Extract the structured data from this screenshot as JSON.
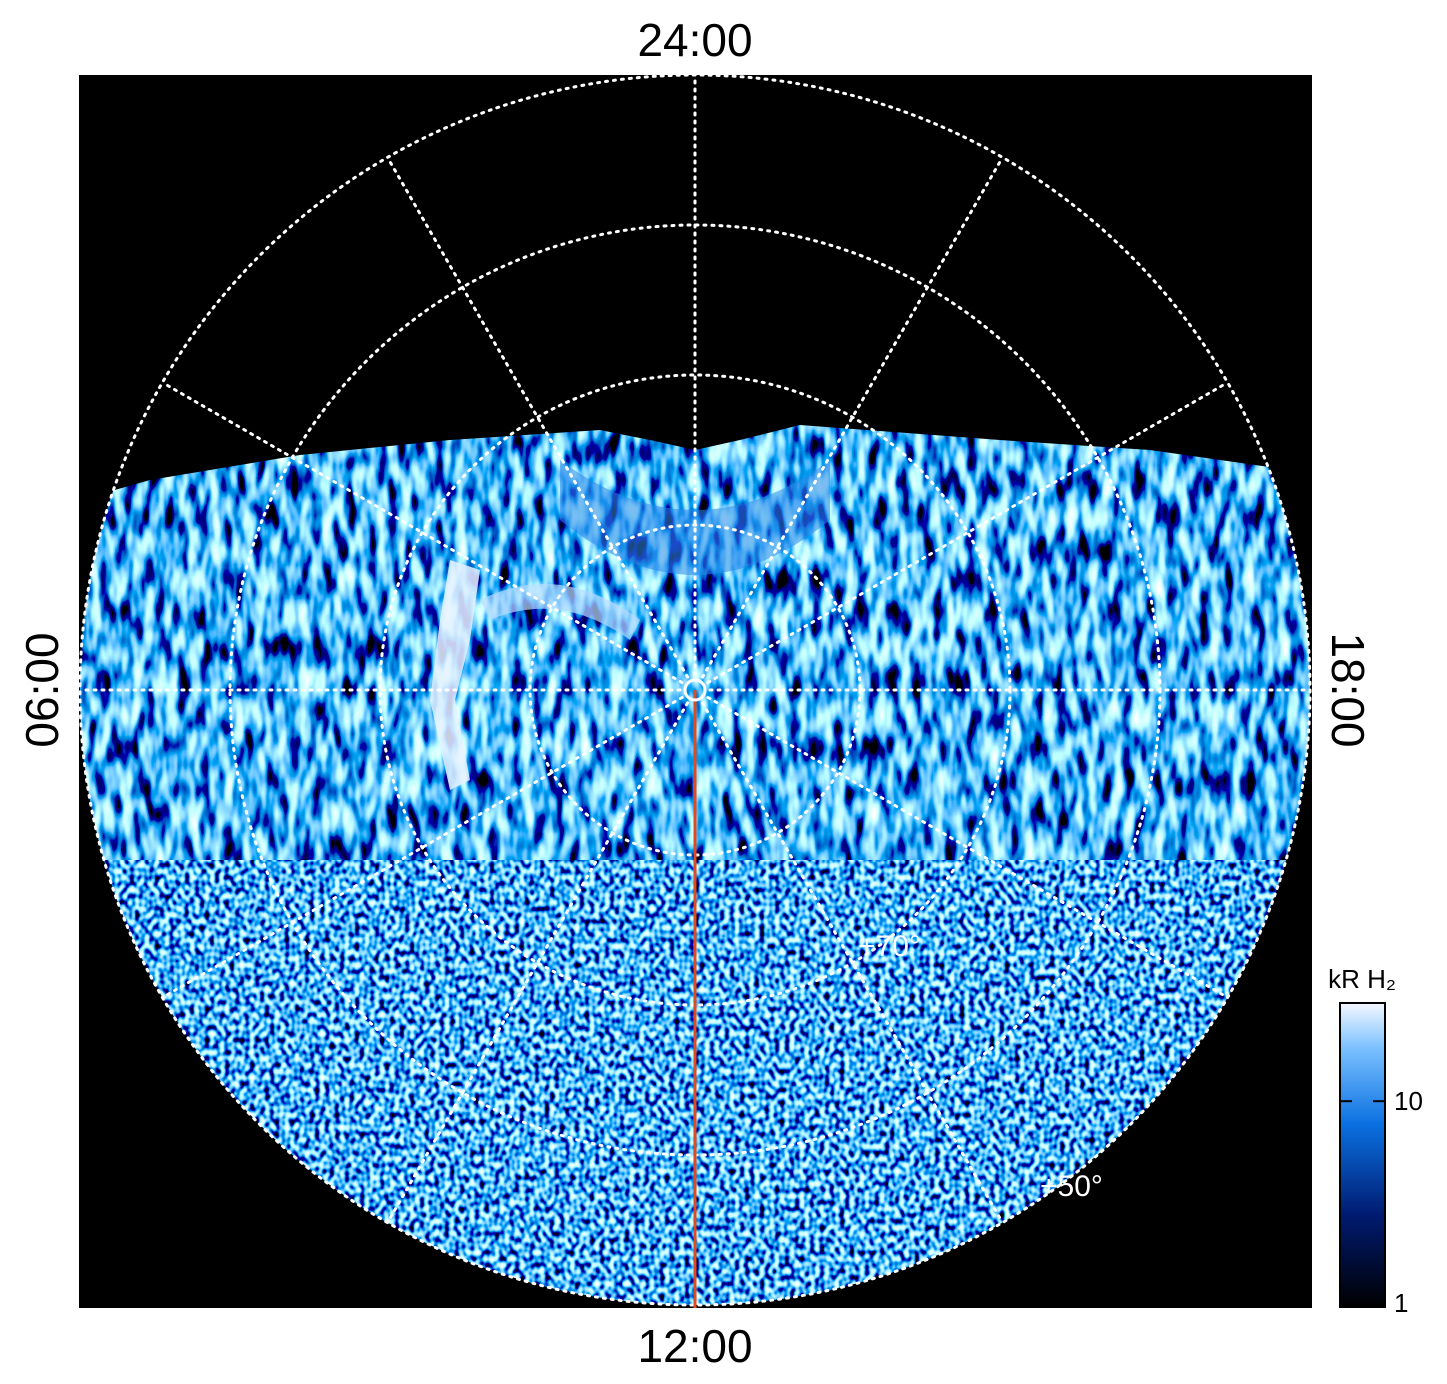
{
  "labels": {
    "top": "24:00",
    "bottom": "12:00",
    "left": "06:00",
    "right": "18:00"
  },
  "latitude_labels": [
    "+70°",
    "+50°"
  ],
  "colorbar": {
    "title": "kR H₂",
    "range": [
      1,
      30
    ],
    "log": true,
    "ticks": [
      1,
      10
    ]
  }
}
